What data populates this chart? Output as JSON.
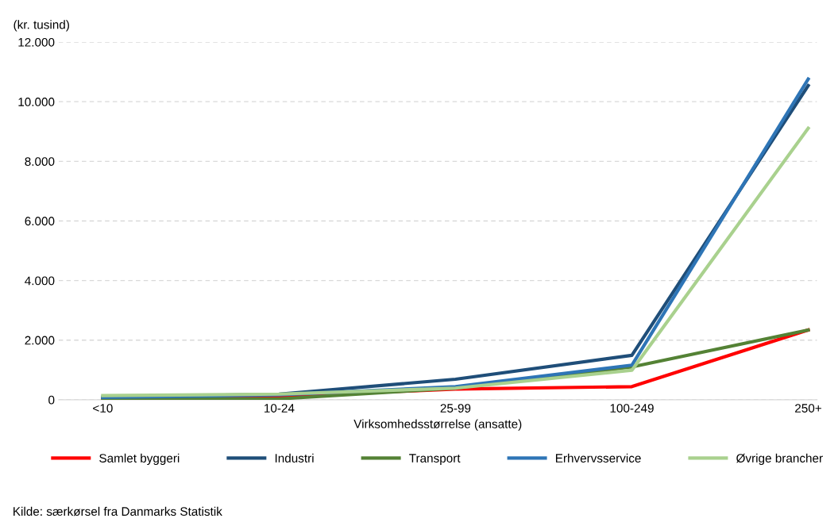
{
  "chart_data": {
    "type": "line",
    "ylabel": "(kr. tusind)",
    "xlabel": "Virksomhedsstørrelse (ansatte)",
    "categories": [
      "<10",
      "10-24",
      "25-99",
      "100-249",
      "250+"
    ],
    "series": [
      {
        "name": "Samlet byggeri",
        "color": "#ff0000",
        "values": [
          50,
          110,
          360,
          440,
          2340
        ]
      },
      {
        "name": "Industri",
        "color": "#1f4e79",
        "values": [
          80,
          190,
          690,
          1490,
          10540
        ]
      },
      {
        "name": "Transport",
        "color": "#548235",
        "values": [
          30,
          30,
          390,
          1100,
          2340
        ]
      },
      {
        "name": "Erhvervsservice",
        "color": "#2e75b6",
        "values": [
          80,
          165,
          440,
          1160,
          10760
        ]
      },
      {
        "name": "Øvrige brancher",
        "color": "#a9d18e",
        "values": [
          140,
          190,
          390,
          990,
          9110
        ]
      }
    ],
    "ylim": [
      0,
      12000
    ],
    "yticks": [
      {
        "value": 0,
        "label": "0"
      },
      {
        "value": 2000,
        "label": "2.000"
      },
      {
        "value": 4000,
        "label": "4.000"
      },
      {
        "value": 6000,
        "label": "6.000"
      },
      {
        "value": 8000,
        "label": "8.000"
      },
      {
        "value": 10000,
        "label": "10.000"
      },
      {
        "value": 12000,
        "label": "12.000"
      }
    ],
    "grid": "y",
    "legend": "bottom",
    "marker": "none",
    "line_style": "solid",
    "annotations": [
      "Kilde: særkørsel fra Danmarks Statistik"
    ]
  }
}
